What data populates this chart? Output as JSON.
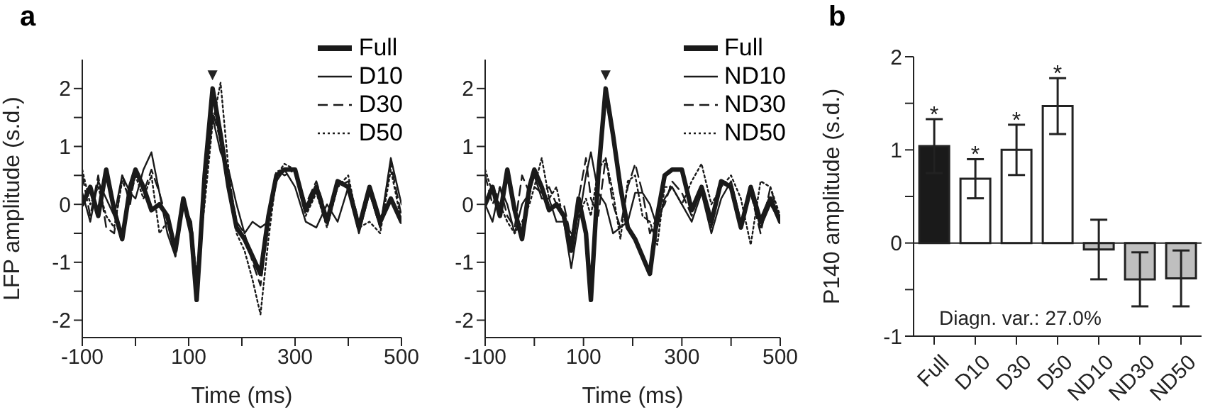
{
  "chart_data": [
    {
      "type": "line",
      "title": "a",
      "xlabel": "Time (ms)",
      "ylabel": "LFP amplitude (s.d.)",
      "x": [
        -100,
        -85,
        -70,
        -55,
        -40,
        -25,
        -10,
        0,
        15,
        30,
        45,
        60,
        75,
        90,
        105,
        115,
        130,
        145,
        160,
        175,
        190,
        205,
        220,
        235,
        250,
        265,
        280,
        300,
        320,
        340,
        360,
        380,
        400,
        420,
        440,
        460,
        480,
        500
      ],
      "series": [
        {
          "name": "Full",
          "color": "#1a1a1a",
          "line_style": "solid",
          "values": [
            0,
            0.3,
            -0.2,
            0.6,
            -0.1,
            -0.6,
            0.3,
            0.6,
            0.3,
            -0.1,
            0,
            -0.2,
            -0.8,
            0.1,
            -0.5,
            -1.65,
            0.5,
            2.0,
            1.2,
            0.3,
            -0.4,
            -0.6,
            -0.9,
            -1.2,
            -0.2,
            0.5,
            0.6,
            0.6,
            -0.1,
            0.3,
            -0.3,
            0.4,
            0.3,
            -0.4,
            0.3,
            -0.3,
            0.1,
            -0.3
          ]
        },
        {
          "name": "D10",
          "color": "#1a1a1a",
          "line_style": "solid",
          "values": [
            0.2,
            -0.3,
            0.4,
            0.1,
            -0.2,
            0.5,
            0.2,
            0.1,
            0.6,
            0.9,
            0.2,
            -0.5,
            -0.9,
            0.0,
            -0.3,
            -1.4,
            0.3,
            1.5,
            0.9,
            0.6,
            0.0,
            -0.5,
            -0.3,
            -0.4,
            -0.3,
            0.4,
            0.6,
            0.3,
            -0.3,
            -0.4,
            0.0,
            -0.3,
            0.3,
            -0.5,
            0.2,
            -0.4,
            0.8,
            0.0
          ]
        },
        {
          "name": "D30",
          "color": "#1a1a1a",
          "line_style": "dashed",
          "values": [
            0.5,
            -0.2,
            0.5,
            -0.4,
            -0.5,
            0.5,
            0.0,
            0.6,
            0.2,
            0.6,
            0.2,
            -0.3,
            -0.9,
            0.1,
            -0.4,
            -1.4,
            0.4,
            1.6,
            1.1,
            0.5,
            -0.3,
            -0.5,
            -1.0,
            -1.4,
            -0.3,
            0.6,
            0.5,
            0.6,
            0.0,
            0.4,
            -0.2,
            0.3,
            0.4,
            -0.3,
            0.2,
            -0.4,
            0.7,
            -0.2
          ]
        },
        {
          "name": "D50",
          "color": "#1a1a1a",
          "line_style": "dotted",
          "values": [
            0.6,
            0.0,
            0.3,
            -0.2,
            -0.4,
            0.4,
            0.1,
            0.5,
            0.1,
            0.5,
            -0.5,
            -0.3,
            -0.8,
            0.1,
            -0.5,
            -1.2,
            0.0,
            1.4,
            2.1,
            0.6,
            -0.5,
            -0.8,
            -1.3,
            -1.9,
            -0.6,
            0.5,
            0.7,
            0.6,
            -0.2,
            0.2,
            -0.4,
            0.3,
            0.5,
            -0.4,
            -0.3,
            -0.5,
            0.6,
            -0.3
          ]
        }
      ],
      "xlim": [
        -100,
        500
      ],
      "xticks": [
        -100,
        {
          "value": 0,
          "label": null
        },
        100,
        {
          "value": 200,
          "label": null
        },
        300,
        {
          "value": 400,
          "label": null
        },
        500
      ],
      "ylim": [
        -2.3,
        2.5
      ],
      "yticks": [
        -2,
        {
          "value": -1.5,
          "label": null
        },
        -1,
        {
          "value": -0.5,
          "label": null
        },
        0,
        {
          "value": 0.5,
          "label": null
        },
        1,
        {
          "value": 1.5,
          "label": null
        },
        2
      ],
      "annotations": [
        {
          "text": "▼",
          "x": 145,
          "y": 2.0
        }
      ],
      "legend": "top right",
      "marker": "none"
    },
    {
      "type": "line",
      "xlabel": "Time (ms)",
      "x": [
        -100,
        -85,
        -70,
        -55,
        -40,
        -25,
        -10,
        0,
        15,
        30,
        45,
        60,
        75,
        90,
        105,
        115,
        130,
        145,
        160,
        175,
        190,
        205,
        220,
        235,
        250,
        265,
        280,
        300,
        320,
        340,
        360,
        380,
        400,
        420,
        440,
        460,
        480,
        500
      ],
      "series": [
        {
          "name": "Full",
          "color": "#1a1a1a",
          "line_style": "solid",
          "values": [
            0,
            0.3,
            -0.2,
            0.6,
            -0.1,
            -0.6,
            0.3,
            0.6,
            0.3,
            -0.1,
            0,
            -0.2,
            -0.8,
            0.1,
            -0.5,
            -1.65,
            0.5,
            2.0,
            1.2,
            0.3,
            -0.4,
            -0.6,
            -0.9,
            -1.2,
            -0.2,
            0.5,
            0.6,
            0.6,
            -0.1,
            0.3,
            -0.3,
            0.4,
            0.3,
            -0.4,
            0.3,
            -0.3,
            0.1,
            -0.3
          ]
        },
        {
          "name": "ND10",
          "color": "#1a1a1a",
          "line_style": "solid",
          "values": [
            0,
            -0.3,
            0.3,
            0.0,
            -0.5,
            0.0,
            0.2,
            0.5,
            0.1,
            0.1,
            -0.3,
            -0.3,
            -1.1,
            -0.3,
            0.5,
            0.9,
            0.2,
            0.0,
            -0.5,
            -0.4,
            -0.3,
            0.2,
            0.2,
            0.0,
            -0.4,
            0.1,
            0.3,
            0.0,
            -0.3,
            0.2,
            -0.5,
            0.1,
            0.4,
            -0.3,
            0.2,
            -0.4,
            0.0,
            -0.3
          ]
        },
        {
          "name": "ND30",
          "color": "#1a1a1a",
          "line_style": "dashed",
          "values": [
            0.5,
            0.0,
            0.3,
            -0.2,
            -0.4,
            0.5,
            0.2,
            0.3,
            0.2,
            0.3,
            0.0,
            0.0,
            -0.6,
            0.1,
            0.8,
            0.1,
            -0.2,
            0.8,
            0.0,
            -0.4,
            0.3,
            0.7,
            0.2,
            -0.5,
            -0.2,
            0.0,
            0.4,
            0.2,
            -0.2,
            0.3,
            -0.4,
            0.4,
            0.3,
            -0.4,
            0.2,
            -0.5,
            0.3,
            -0.3
          ]
        },
        {
          "name": "ND50",
          "color": "#1a1a1a",
          "line_style": "dotted",
          "values": [
            0.6,
            0.2,
            0.0,
            -0.3,
            -0.5,
            -0.3,
            0.0,
            0.3,
            0.8,
            0.1,
            0.3,
            -0.3,
            -0.5,
            -0.2,
            0.1,
            -0.2,
            0.6,
            0.8,
            0.2,
            -0.6,
            0.4,
            0.5,
            -0.2,
            -0.3,
            -0.7,
            0.3,
            0.3,
            0.0,
            0.4,
            0.7,
            0.0,
            0.3,
            0.5,
            0.1,
            -0.7,
            0.4,
            0.3,
            -0.2
          ]
        }
      ],
      "xlim": [
        -100,
        500
      ],
      "xticks": [
        -100,
        {
          "value": 0,
          "label": null
        },
        100,
        {
          "value": 200,
          "label": null
        },
        300,
        {
          "value": 400,
          "label": null
        },
        500
      ],
      "ylim": [
        -2.3,
        2.5
      ],
      "yticks": [
        -2,
        {
          "value": -1.5,
          "label": null
        },
        -1,
        {
          "value": -0.5,
          "label": null
        },
        0,
        {
          "value": 0.5,
          "label": null
        },
        1,
        {
          "value": 1.5,
          "label": null
        },
        2
      ],
      "annotations": [
        {
          "text": "▼",
          "x": 145,
          "y": 2.0
        }
      ],
      "legend": "top right",
      "marker": "none"
    },
    {
      "type": "bar",
      "title": "b",
      "ylabel": "P140 amplitude (s.d.)",
      "categories": [
        "Full",
        "D10",
        "D30",
        "D50",
        "ND10",
        "ND30",
        "ND50"
      ],
      "values": [
        1.04,
        0.69,
        1.0,
        1.47,
        -0.07,
        -0.39,
        -0.38
      ],
      "colors": [
        "#1a1a1a",
        "#ffffff",
        "#ffffff",
        "#ffffff",
        "#bfbfbf",
        "#bfbfbf",
        "#bfbfbf"
      ],
      "errors": [
        0.29,
        0.21,
        0.27,
        0.3,
        0.32,
        0.29,
        0.3
      ],
      "ylim": [
        -1,
        2
      ],
      "yticks": [
        -1,
        {
          "value": -0.5,
          "label": null
        },
        0,
        {
          "value": 0.5,
          "label": null
        },
        1,
        {
          "value": 1.5,
          "label": null
        },
        2
      ],
      "annotations": [
        {
          "text": "*",
          "x": "Full",
          "y": 1.33
        },
        {
          "text": "*",
          "x": "D10",
          "y": 0.9
        },
        {
          "text": "*",
          "x": "D30",
          "y": 1.27
        },
        {
          "text": "*",
          "x": "D50",
          "y": 1.77
        },
        "Diagn. var.: 27.0%"
      ]
    }
  ]
}
